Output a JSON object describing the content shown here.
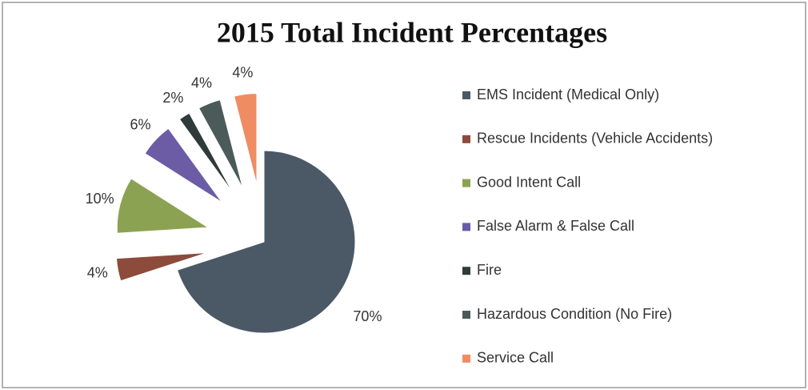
{
  "chart_data": {
    "type": "pie",
    "title": "2015 Total Incident Percentages",
    "categories": [
      "EMS Incident (Medical Only)",
      "Rescue Incidents (Vehicle Accidents)",
      "Good Intent Call",
      "False Alarm & False Call",
      "Fire",
      "Hazardous Condition (No Fire)",
      "Service Call"
    ],
    "values": [
      70,
      4,
      10,
      6,
      2,
      4,
      4
    ],
    "value_labels": [
      "70%",
      "4%",
      "10%",
      "6%",
      "2%",
      "4%",
      "4%"
    ],
    "colors": [
      "#4b5966",
      "#8c4b3b",
      "#8ca253",
      "#6c5ca6",
      "#2f3a3a",
      "#4b5b5a",
      "#f08c62"
    ],
    "legend": "right"
  }
}
